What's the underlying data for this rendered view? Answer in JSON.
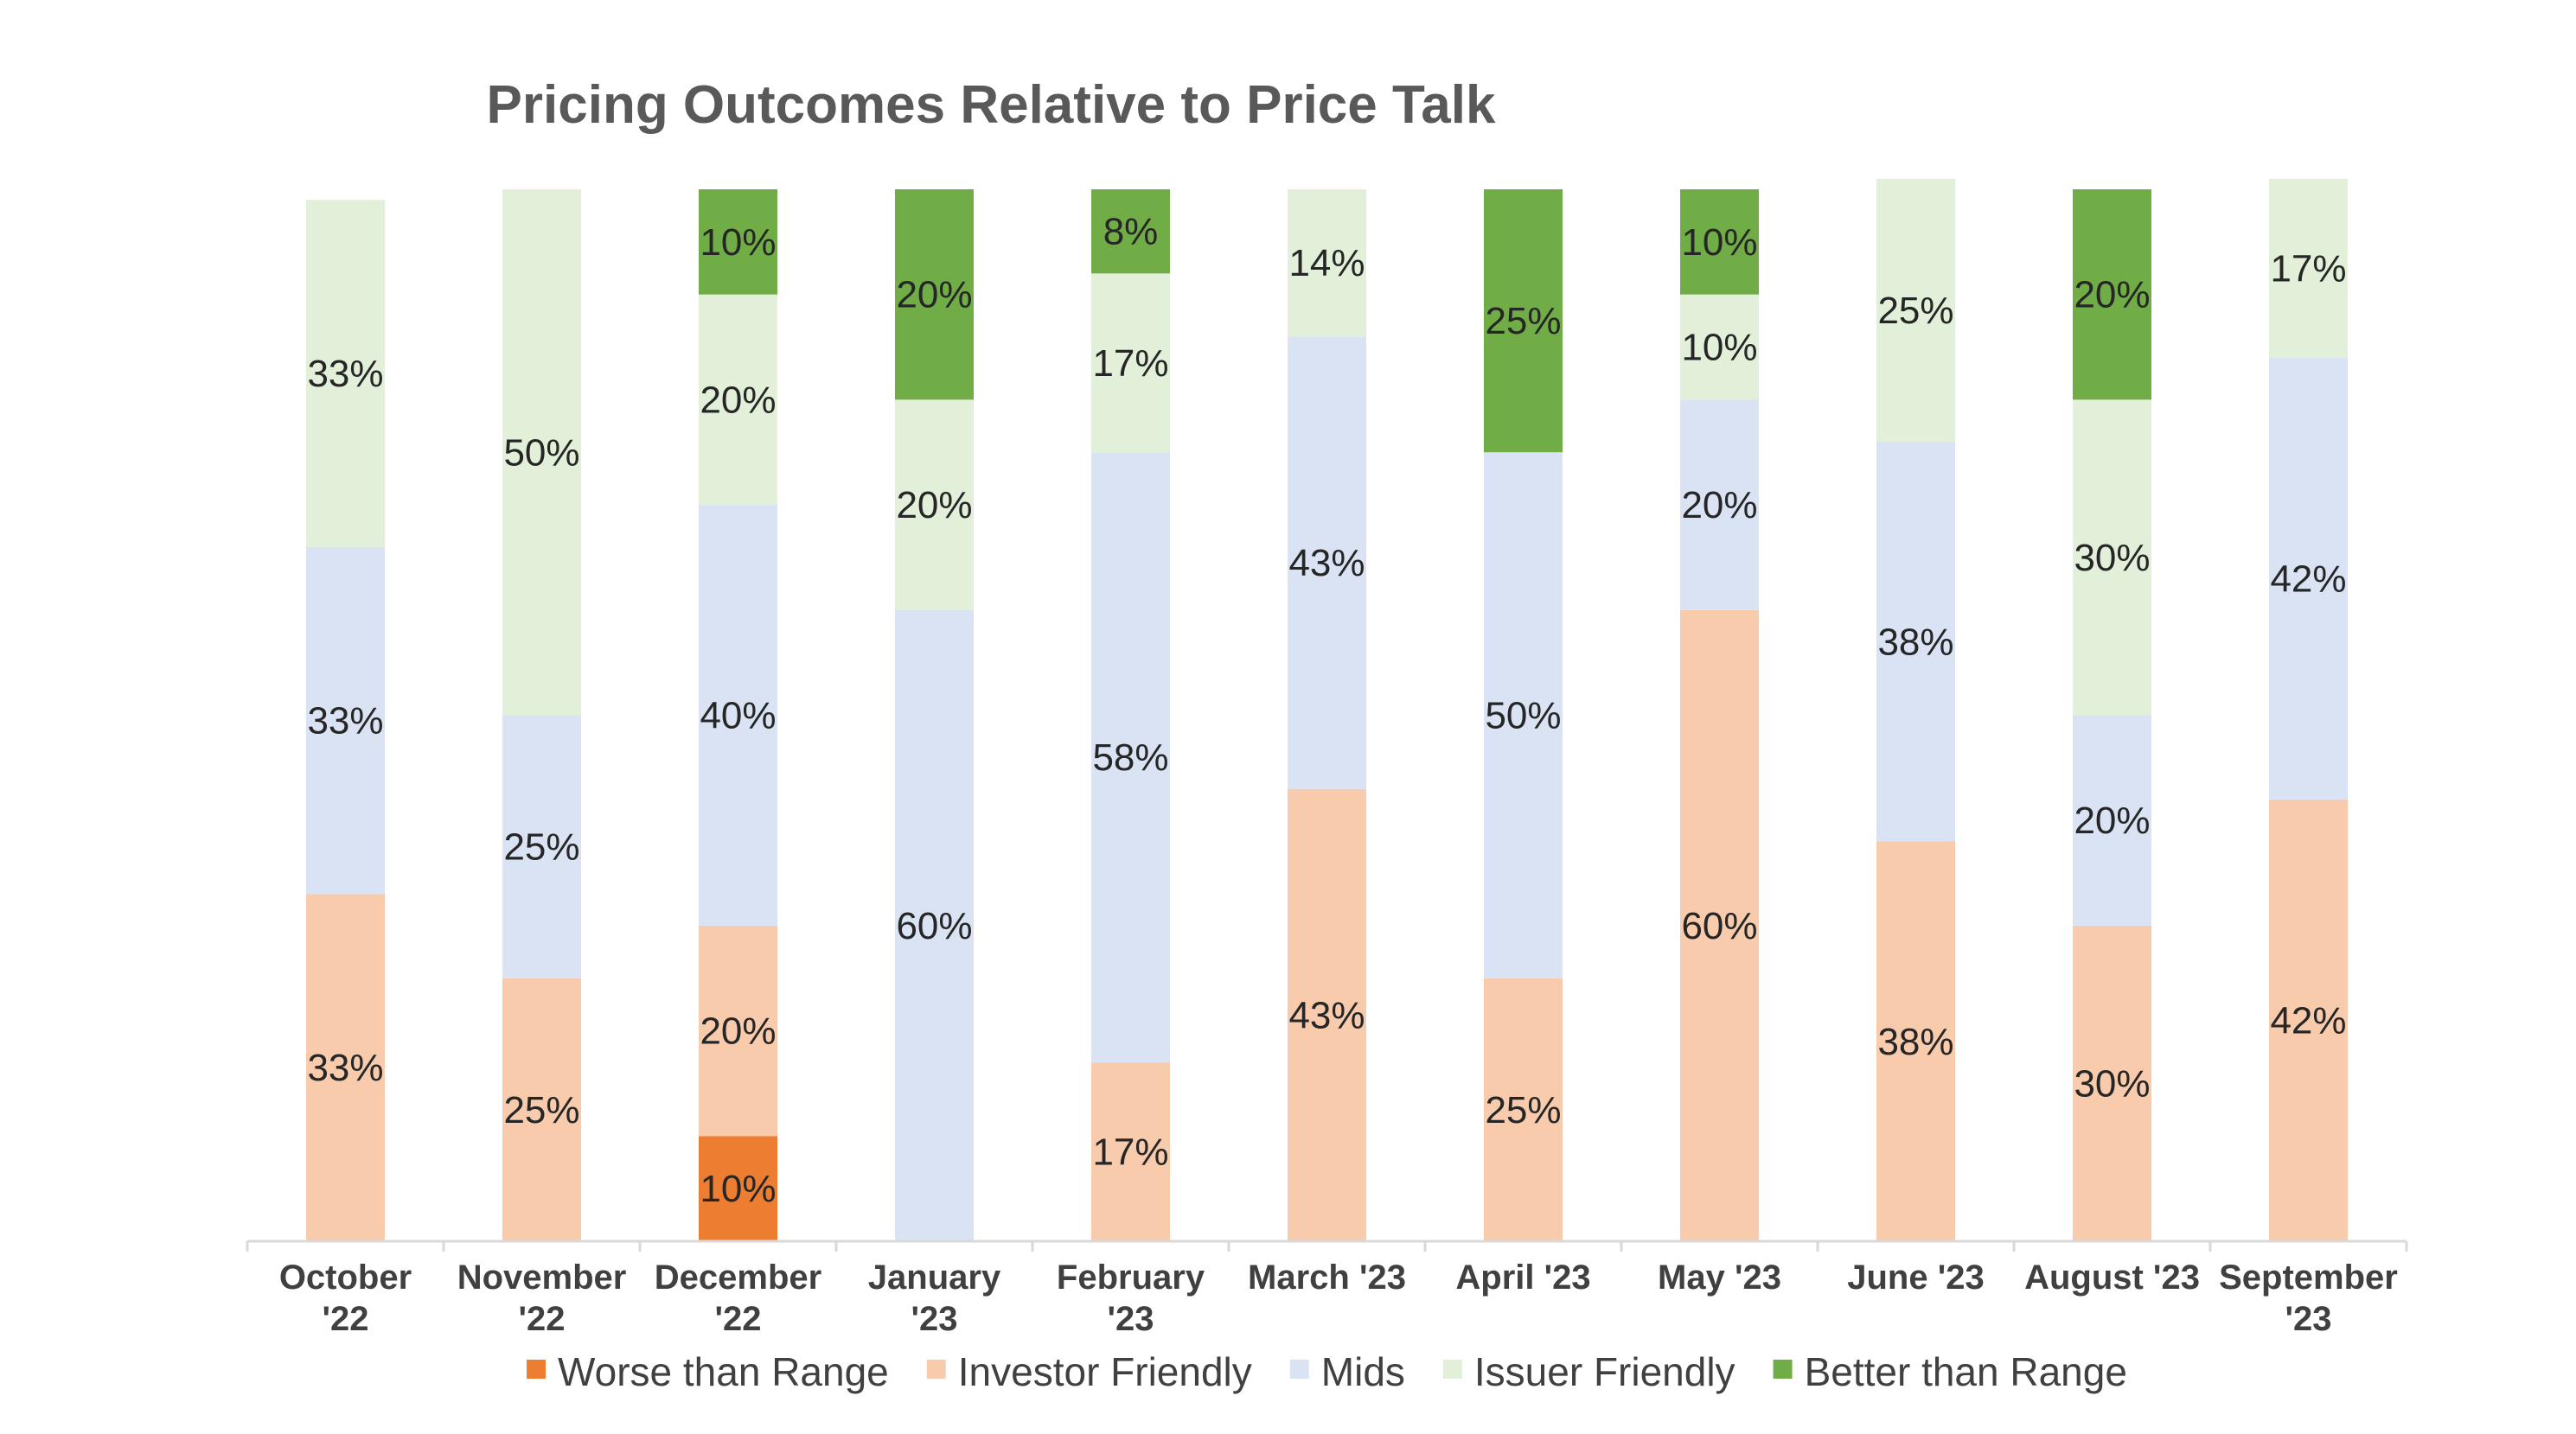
{
  "chart_data": {
    "type": "bar",
    "stacked": true,
    "percent_stacked": true,
    "title": "Pricing Outcomes Relative to Price Talk",
    "xlabel": "",
    "ylabel": "",
    "ylim": [
      0,
      100
    ],
    "grid": false,
    "legend_position": "bottom",
    "categories": [
      [
        "October",
        "'22"
      ],
      [
        "November",
        "'22"
      ],
      [
        "December",
        "'22"
      ],
      [
        "January",
        "'23"
      ],
      [
        "February",
        "'23"
      ],
      [
        "March '23"
      ],
      [
        "April '23"
      ],
      [
        "May '23"
      ],
      [
        "June '23"
      ],
      [
        "August '23"
      ],
      [
        "September",
        "'23"
      ]
    ],
    "series": [
      {
        "name": "Worse than Range",
        "color": "#ED7D31",
        "values": [
          0,
          0,
          10,
          0,
          0,
          0,
          0,
          0,
          0,
          0,
          0
        ]
      },
      {
        "name": "Investor Friendly",
        "color": "#F8CBAD",
        "values": [
          33,
          25,
          20,
          0,
          17,
          43,
          25,
          60,
          38,
          30,
          42
        ]
      },
      {
        "name": "Mids",
        "color": "#DAE3F3",
        "values": [
          33,
          25,
          40,
          60,
          58,
          43,
          50,
          20,
          38,
          20,
          42
        ]
      },
      {
        "name": "Issuer Friendly",
        "color": "#E2F0D9",
        "values": [
          33,
          50,
          20,
          20,
          17,
          14,
          0,
          10,
          25,
          30,
          17
        ]
      },
      {
        "name": "Better than Range",
        "color": "#70AD47",
        "values": [
          0,
          0,
          10,
          20,
          8,
          0,
          25,
          10,
          0,
          20,
          0
        ]
      }
    ],
    "data_label_suffix": "%"
  }
}
